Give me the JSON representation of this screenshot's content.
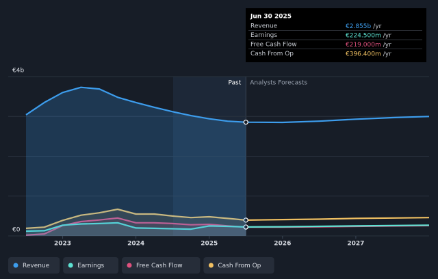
{
  "chart_data": {
    "type": "line",
    "x": [
      2022.5,
      2022.75,
      2023.0,
      2023.25,
      2023.5,
      2023.75,
      2024.0,
      2024.25,
      2024.5,
      2024.75,
      2025.0,
      2025.25,
      2025.5,
      2026.0,
      2026.5,
      2027.0,
      2027.5,
      2028.0
    ],
    "xlim": [
      2022.5,
      2028.0
    ],
    "xticks": [
      2023,
      2024,
      2025,
      2026,
      2027
    ],
    "ylim": [
      0,
      4
    ],
    "yticks": [
      {
        "value": 0,
        "label": "€0"
      },
      {
        "value": 1,
        "label": null
      },
      {
        "value": 2,
        "label": null
      },
      {
        "value": 3,
        "label": null
      },
      {
        "value": 4,
        "label": "€4b"
      }
    ],
    "grid": true,
    "divider": {
      "x": 2025.5,
      "past_label": "Past",
      "forecast_label": "Analysts Forecasts"
    },
    "series": [
      {
        "name": "Revenue",
        "color": "#3d9ded",
        "values": [
          3.04,
          3.35,
          3.6,
          3.73,
          3.69,
          3.48,
          3.35,
          3.23,
          3.12,
          3.02,
          2.94,
          2.88,
          2.855,
          2.85,
          2.88,
          2.93,
          2.97,
          3.0
        ]
      },
      {
        "name": "Earnings",
        "color": "#5de2d2",
        "values": [
          0.12,
          0.13,
          0.27,
          0.3,
          0.31,
          0.33,
          0.2,
          0.19,
          0.18,
          0.17,
          0.25,
          0.24,
          0.2245,
          0.23,
          0.24,
          0.25,
          0.26,
          0.27
        ]
      },
      {
        "name": "Free Cash Flow",
        "color": "#e0517e",
        "values": [
          0.02,
          0.05,
          0.26,
          0.36,
          0.4,
          0.45,
          0.33,
          0.33,
          0.31,
          0.28,
          0.29,
          0.25,
          0.219,
          0.22,
          0.23,
          0.24,
          0.25,
          0.26
        ]
      },
      {
        "name": "Cash From Op",
        "color": "#f0c062",
        "values": [
          0.19,
          0.22,
          0.39,
          0.52,
          0.58,
          0.67,
          0.55,
          0.55,
          0.5,
          0.46,
          0.48,
          0.44,
          0.3964,
          0.41,
          0.42,
          0.44,
          0.45,
          0.46
        ]
      }
    ],
    "tooltip": {
      "date": "Jun 30 2025",
      "unit": "/yr",
      "rows": [
        {
          "name": "Revenue",
          "value": 2.855,
          "label": "€2.855b"
        },
        {
          "name": "Earnings",
          "value": 0.2245,
          "label": "€224.500m"
        },
        {
          "name": "Free Cash Flow",
          "value": 0.219,
          "label": "€219.000m"
        },
        {
          "name": "Cash From Op",
          "value": 0.3964,
          "label": "€396.400m"
        }
      ]
    }
  }
}
